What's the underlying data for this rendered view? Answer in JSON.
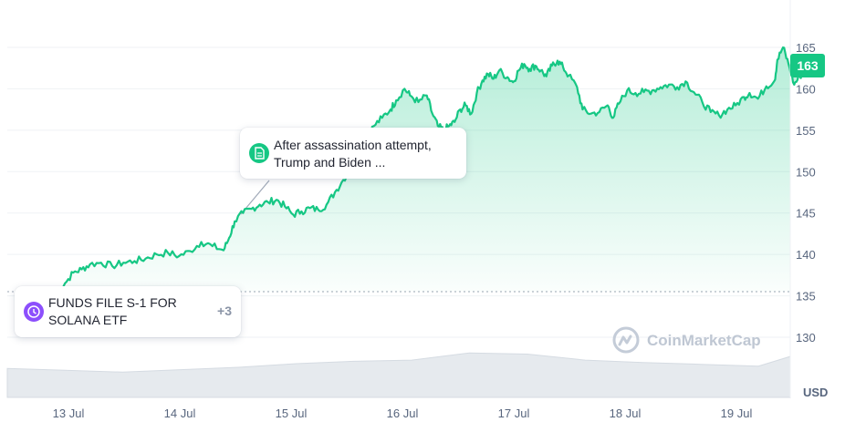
{
  "chart_data": {
    "type": "area",
    "x_labels": [
      "13 Jul",
      "14 Jul",
      "15 Jul",
      "16 Jul",
      "17 Jul",
      "18 Jul",
      "19 Jul"
    ],
    "y_ticks": [
      130,
      135,
      140,
      145,
      150,
      155,
      160,
      165
    ],
    "ylim": [
      125,
      168
    ],
    "y_unit": "USD",
    "current_price": "163",
    "reference_line": 135.5,
    "price_series": [
      [
        0,
        135.6
      ],
      [
        0.15,
        136.5
      ],
      [
        0.3,
        137.8
      ],
      [
        0.45,
        138.2
      ],
      [
        0.6,
        138.8
      ],
      [
        0.8,
        139.0
      ],
      [
        1.0,
        138.6
      ],
      [
        1.2,
        139.0
      ],
      [
        1.4,
        139.2
      ],
      [
        1.6,
        139.5
      ],
      [
        1.8,
        140.0
      ],
      [
        2.0,
        140.2
      ],
      [
        2.2,
        139.8
      ],
      [
        2.4,
        140.4
      ],
      [
        2.6,
        141.5
      ],
      [
        2.8,
        141.0
      ],
      [
        3.0,
        140.5
      ],
      [
        3.1,
        142.0
      ],
      [
        3.2,
        144.0
      ],
      [
        3.35,
        145.0
      ],
      [
        3.5,
        145.5
      ],
      [
        3.65,
        146.0
      ],
      [
        3.8,
        146.3
      ],
      [
        3.95,
        146.6
      ],
      [
        4.1,
        145.8
      ],
      [
        4.25,
        144.8
      ],
      [
        4.4,
        145.2
      ],
      [
        4.55,
        145.6
      ],
      [
        4.7,
        145.4
      ],
      [
        4.85,
        146.0
      ],
      [
        5.0,
        147.5
      ],
      [
        5.15,
        149.0
      ],
      [
        5.3,
        150.5
      ],
      [
        5.45,
        151.5
      ],
      [
        5.55,
        154.0
      ],
      [
        5.7,
        155.5
      ],
      [
        5.85,
        156.5
      ],
      [
        6.0,
        157.5
      ],
      [
        6.1,
        158.6
      ],
      [
        6.25,
        160.0
      ],
      [
        6.35,
        159.2
      ],
      [
        6.5,
        158.4
      ],
      [
        6.65,
        159.2
      ],
      [
        6.75,
        157.0
      ],
      [
        6.85,
        155.5
      ],
      [
        6.95,
        155.0
      ],
      [
        7.05,
        155.5
      ],
      [
        7.15,
        156.0
      ],
      [
        7.25,
        157.5
      ],
      [
        7.35,
        158.0
      ],
      [
        7.45,
        157.0
      ],
      [
        7.55,
        159.5
      ],
      [
        7.65,
        161.0
      ],
      [
        7.75,
        161.8
      ],
      [
        7.85,
        161.2
      ],
      [
        7.95,
        162.2
      ],
      [
        8.1,
        161.4
      ],
      [
        8.2,
        160.8
      ],
      [
        8.3,
        162.2
      ],
      [
        8.4,
        163.0
      ],
      [
        8.5,
        162.4
      ],
      [
        8.6,
        162.8
      ],
      [
        8.7,
        162.2
      ],
      [
        8.8,
        161.5
      ],
      [
        8.9,
        162.8
      ],
      [
        9.0,
        163.4
      ],
      [
        9.1,
        162.6
      ],
      [
        9.2,
        161.6
      ],
      [
        9.35,
        160.2
      ],
      [
        9.45,
        157.5
      ],
      [
        9.6,
        157.0
      ],
      [
        9.75,
        157.2
      ],
      [
        9.9,
        158.0
      ],
      [
        10.0,
        156.5
      ],
      [
        10.1,
        158.2
      ],
      [
        10.25,
        159.8
      ],
      [
        10.4,
        159.5
      ],
      [
        10.55,
        159.6
      ],
      [
        10.7,
        159.8
      ],
      [
        10.85,
        160.2
      ],
      [
        11.0,
        160.5
      ],
      [
        11.15,
        160.2
      ],
      [
        11.3,
        160.9
      ],
      [
        11.45,
        159.6
      ],
      [
        11.6,
        158.4
      ],
      [
        11.75,
        157.2
      ],
      [
        11.9,
        156.8
      ],
      [
        12.05,
        157.5
      ],
      [
        12.2,
        158.0
      ],
      [
        12.35,
        159.0
      ],
      [
        12.45,
        159.5
      ],
      [
        12.6,
        158.8
      ],
      [
        12.75,
        160.3
      ],
      [
        12.9,
        161.0
      ],
      [
        12.95,
        163.5
      ],
      [
        13.05,
        165.0
      ],
      [
        13.15,
        163.0
      ],
      [
        13.25,
        160.5
      ],
      [
        13.35,
        161.5
      ],
      [
        13.45,
        162.2
      ],
      [
        13.55,
        163.0
      ]
    ],
    "volume_series": [
      [
        0,
        0.48
      ],
      [
        1,
        0.45
      ],
      [
        2,
        0.42
      ],
      [
        3,
        0.46
      ],
      [
        4,
        0.5
      ],
      [
        5,
        0.56
      ],
      [
        6,
        0.6
      ],
      [
        7,
        0.62
      ],
      [
        8,
        0.74
      ],
      [
        9,
        0.72
      ],
      [
        10,
        0.62
      ],
      [
        11,
        0.58
      ],
      [
        12,
        0.55
      ],
      [
        13,
        0.52
      ],
      [
        13.55,
        0.68
      ]
    ]
  },
  "annotations": {
    "news": {
      "text": "After assassination attempt, Trump and Biden ..."
    },
    "event": {
      "text": "FUNDS FILE S-1 FOR SOLANA ETF",
      "extra": "+3"
    }
  },
  "watermark": {
    "text": "CoinMarketCap"
  },
  "colors": {
    "line": "#16c784",
    "event_icon": "#8c4ffc",
    "axis_text": "#58667e"
  }
}
